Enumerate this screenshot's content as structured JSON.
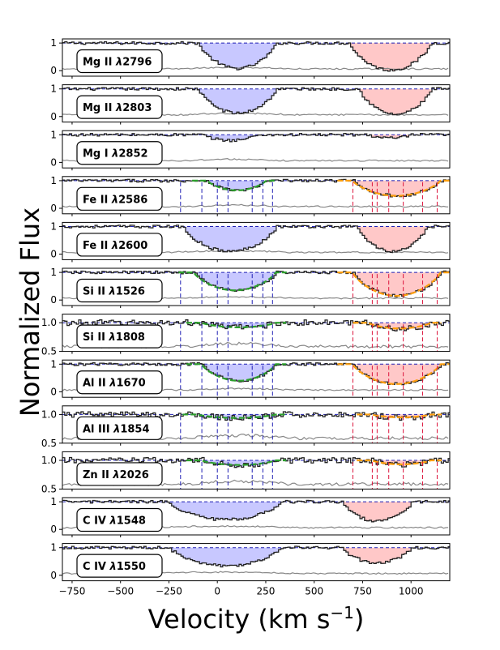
{
  "chart_data": {
    "type": "line",
    "figure_ylabel": "Normalized Flux",
    "figure_xlabel_text": "Velocity (km s",
    "figure_xlabel_exp": "−1",
    "figure_xlabel_close": ")",
    "xlim": [
      -800,
      1200
    ],
    "xticks": [
      -750,
      -500,
      -250,
      0,
      250,
      500,
      750,
      1000
    ],
    "xtick_labels": [
      "−750",
      "−500",
      "−250",
      "0",
      "250",
      "500",
      "750",
      "1000"
    ],
    "colors": {
      "flux": "#222222",
      "error": "#888888",
      "continuum": "#1f1fb4",
      "blue_fill": "#c8c8ff",
      "red_fill": "#ffc8c8",
      "fit_green": "#2ca02c",
      "fit_orange": "#ff9f0e",
      "comp_blue": "#1f1fb4",
      "comp_red": "#dc143c"
    },
    "blue_component_velocities": [
      -190,
      -80,
      0,
      55,
      180,
      235,
      285
    ],
    "red_component_velocities": [
      700,
      800,
      825,
      885,
      960,
      1060,
      1135
    ],
    "panels": [
      {
        "ion": "Mg II",
        "wave": "2796",
        "ylim": [
          -0.2,
          1.15
        ],
        "yticks": [
          0,
          1
        ],
        "ytick_labels": [
          "0",
          "1"
        ],
        "blue_range": [
          -100,
          300
        ],
        "blue_depth": 0.92,
        "red_range": [
          680,
          1100
        ],
        "red_depth": 0.98,
        "show_ticks": false,
        "fit_blue": false,
        "fit_red": false
      },
      {
        "ion": "Mg II",
        "wave": "2803",
        "ylim": [
          -0.2,
          1.15
        ],
        "yticks": [
          0,
          1
        ],
        "ytick_labels": [
          "0",
          "1"
        ],
        "blue_range": [
          -100,
          300
        ],
        "blue_depth": 0.88,
        "red_range": [
          730,
          1100
        ],
        "red_depth": 0.92,
        "show_ticks": false,
        "fit_blue": false,
        "fit_red": false
      },
      {
        "ion": "Mg I",
        "wave": "2852",
        "ylim": [
          -0.2,
          1.15
        ],
        "yticks": [
          0,
          1
        ],
        "ytick_labels": [
          "0",
          "1"
        ],
        "blue_range": [
          -80,
          200
        ],
        "blue_depth": 0.2,
        "red_range": [
          780,
          1000
        ],
        "red_depth": 0.12,
        "show_ticks": false,
        "fit_blue": false,
        "fit_red": false
      },
      {
        "ion": "Fe II",
        "wave": "2586",
        "ylim": [
          -0.2,
          1.15
        ],
        "yticks": [
          0,
          1
        ],
        "ytick_labels": [
          "0",
          "1"
        ],
        "blue_range": [
          -50,
          250
        ],
        "blue_depth": 0.35,
        "red_range": [
          700,
          1150
        ],
        "red_depth": 0.55,
        "show_ticks": true,
        "fit_blue": true,
        "fit_red": true
      },
      {
        "ion": "Fe II",
        "wave": "2600",
        "ylim": [
          -0.2,
          1.15
        ],
        "yticks": [
          0,
          1
        ],
        "ytick_labels": [
          "0",
          "1"
        ],
        "blue_range": [
          -180,
          300
        ],
        "blue_depth": 0.9,
        "red_range": [
          720,
          1080
        ],
        "red_depth": 0.9,
        "show_ticks": false,
        "fit_blue": false,
        "fit_red": false
      },
      {
        "ion": "Si II",
        "wave": "1526",
        "ylim": [
          -0.2,
          1.15
        ],
        "yticks": [
          0,
          1
        ],
        "ytick_labels": [
          "0",
          "1"
        ],
        "blue_range": [
          -120,
          300
        ],
        "blue_depth": 0.65,
        "red_range": [
          700,
          1150
        ],
        "red_depth": 0.85,
        "show_ticks": true,
        "fit_blue": true,
        "fit_red": true
      },
      {
        "ion": "Si II",
        "wave": "1808",
        "ylim": [
          0.5,
          1.15
        ],
        "yticks": [
          0.5,
          1.0
        ],
        "ytick_labels": [
          "0.5",
          "1.0"
        ],
        "blue_range": [
          -80,
          300
        ],
        "blue_depth": 0.08,
        "red_range": [
          780,
          1100
        ],
        "red_depth": 0.1,
        "show_ticks": true,
        "fit_blue": true,
        "fit_red": true
      },
      {
        "ion": "Al II",
        "wave": "1670",
        "ylim": [
          -0.2,
          1.15
        ],
        "yticks": [
          0,
          1
        ],
        "ytick_labels": [
          "0",
          "1"
        ],
        "blue_range": [
          -80,
          300
        ],
        "blue_depth": 0.6,
        "red_range": [
          700,
          1150
        ],
        "red_depth": 0.72,
        "show_ticks": true,
        "fit_blue": true,
        "fit_red": true
      },
      {
        "ion": "Al III",
        "wave": "1854",
        "ylim": [
          0.5,
          1.15
        ],
        "yticks": [
          0.5,
          1.0
        ],
        "ytick_labels": [
          "0.5",
          "1.0"
        ],
        "blue_range": [
          -100,
          300
        ],
        "blue_depth": 0.06,
        "red_range": [
          800,
          1100
        ],
        "red_depth": 0.05,
        "show_ticks": true,
        "fit_blue": true,
        "fit_red": true
      },
      {
        "ion": "Zn II",
        "wave": "2026",
        "ylim": [
          0.5,
          1.15
        ],
        "yticks": [
          0.5,
          1.0
        ],
        "ytick_labels": [
          "0.5",
          "1.0"
        ],
        "blue_range": [
          -80,
          300
        ],
        "blue_depth": 0.08,
        "red_range": [
          800,
          1100
        ],
        "red_depth": 0.07,
        "show_ticks": true,
        "fit_blue": true,
        "fit_red": true
      },
      {
        "ion": "C IV",
        "wave": "1548",
        "ylim": [
          -0.2,
          1.15
        ],
        "yticks": [
          0,
          1
        ],
        "ytick_labels": [
          "0",
          "1"
        ],
        "blue_range": [
          -250,
          330
        ],
        "blue_depth": 0.65,
        "red_range": [
          640,
          1000
        ],
        "red_depth": 0.7,
        "show_ticks": false,
        "fit_blue": false,
        "fit_red": false
      },
      {
        "ion": "C IV",
        "wave": "1550",
        "ylim": [
          -0.2,
          1.15
        ],
        "yticks": [
          0,
          1
        ],
        "ytick_labels": [
          "0",
          "1"
        ],
        "blue_range": [
          -250,
          330
        ],
        "blue_depth": 0.65,
        "red_range": [
          640,
          1000
        ],
        "red_depth": 0.55,
        "show_ticks": false,
        "fit_blue": false,
        "fit_red": false
      }
    ]
  }
}
